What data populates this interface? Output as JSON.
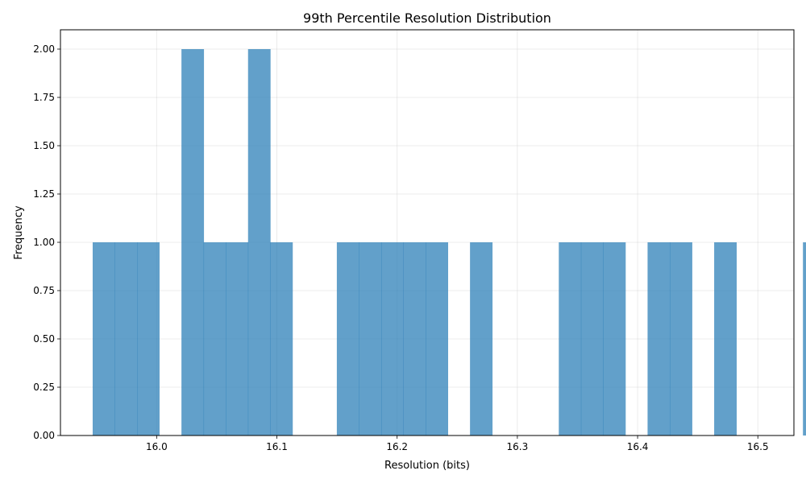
{
  "chart_data": {
    "type": "bar",
    "title": "99th Percentile Resolution Distribution",
    "xlabel": "Resolution (bits)",
    "ylabel": "Frequency",
    "xlim": [
      15.92,
      16.53
    ],
    "ylim": [
      0,
      2.1
    ],
    "x_ticks": [
      16.0,
      16.1,
      16.2,
      16.3,
      16.4,
      16.5
    ],
    "x_tick_labels": [
      "16.0",
      "16.1",
      "16.2",
      "16.3",
      "16.4",
      "16.5"
    ],
    "y_ticks": [
      0,
      0.25,
      0.5,
      0.75,
      1.0,
      1.25,
      1.5,
      1.75,
      2.0
    ],
    "y_tick_labels": [
      "0.00",
      "0.25",
      "0.50",
      "0.75",
      "1.00",
      "1.25",
      "1.50",
      "1.75",
      "2.00"
    ],
    "bin_edges_start": 15.9468,
    "bin_width": 0.01846,
    "counts": [
      1,
      1,
      1,
      0,
      2,
      1,
      1,
      2,
      1,
      0,
      0,
      1,
      1,
      1,
      1,
      1,
      0,
      1,
      0,
      0,
      0,
      1,
      1,
      1,
      0,
      1,
      1,
      0,
      1,
      0,
      0,
      0,
      1
    ],
    "bar_color": "#1f77b4",
    "bar_opacity": 0.7,
    "grid": true
  }
}
